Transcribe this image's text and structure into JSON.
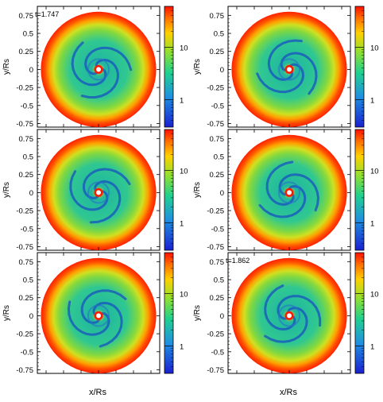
{
  "chart_data": [
    {
      "type": "heatmap",
      "panel": "top-left",
      "time_label": "t=1.747",
      "xlabel": "",
      "ylabel": "y/Rs",
      "xlim": [
        -0.875,
        0.875
      ],
      "ylim": [
        -0.8,
        0.875
      ],
      "yticks": [
        "0.75",
        "0.5",
        "0.25",
        "0",
        "-0.25",
        "-0.5",
        "-0.75"
      ],
      "colorbar": {
        "scale": "log",
        "ticks": [
          "10",
          "1"
        ],
        "range": [
          0.3,
          60
        ]
      }
    },
    {
      "type": "heatmap",
      "panel": "top-right",
      "time_label": "",
      "xlabel": "",
      "ylabel": "y/Rs",
      "xlim": [
        -0.875,
        0.875
      ],
      "ylim": [
        -0.8,
        0.875
      ],
      "yticks": [
        "0.75",
        "0.5",
        "0.25",
        "0",
        "-0.25",
        "-0.5",
        "-0.75"
      ],
      "colorbar": {
        "scale": "log",
        "ticks": [
          "10",
          "1"
        ],
        "range": [
          0.3,
          60
        ]
      }
    },
    {
      "type": "heatmap",
      "panel": "middle-left",
      "time_label": "",
      "xlabel": "",
      "ylabel": "y/Rs",
      "xlim": [
        -0.875,
        0.875
      ],
      "ylim": [
        -0.8,
        0.875
      ],
      "yticks": [
        "0.75",
        "0.5",
        "0.25",
        "0",
        "-0.25",
        "-0.5",
        "-0.75"
      ],
      "colorbar": {
        "scale": "log",
        "ticks": [
          "10",
          "1"
        ],
        "range": [
          0.3,
          60
        ]
      }
    },
    {
      "type": "heatmap",
      "panel": "middle-right",
      "time_label": "",
      "xlabel": "",
      "ylabel": "y/Rs",
      "xlim": [
        -0.875,
        0.875
      ],
      "ylim": [
        -0.8,
        0.875
      ],
      "yticks": [
        "0.75",
        "0.5",
        "0.25",
        "0",
        "-0.25",
        "-0.5",
        "-0.75"
      ],
      "colorbar": {
        "scale": "log",
        "ticks": [
          "10",
          "1"
        ],
        "range": [
          0.3,
          60
        ]
      }
    },
    {
      "type": "heatmap",
      "panel": "bottom-left",
      "time_label": "",
      "xlabel": "x/Rs",
      "ylabel": "y/Rs",
      "xlim": [
        -0.875,
        0.875
      ],
      "ylim": [
        -0.8,
        0.875
      ],
      "yticks": [
        "0.75",
        "0.5",
        "0.25",
        "0",
        "-0.25",
        "-0.5",
        "-0.75"
      ],
      "colorbar": {
        "scale": "log",
        "ticks": [
          "10",
          "1"
        ],
        "range": [
          0.3,
          60
        ]
      }
    },
    {
      "type": "heatmap",
      "panel": "bottom-right",
      "time_label": "t=1.862",
      "xlabel": "x/Rs",
      "ylabel": "y/Rs",
      "xlim": [
        -0.875,
        0.875
      ],
      "ylim": [
        -0.8,
        0.875
      ],
      "yticks": [
        "0.75",
        "0.5",
        "0.25",
        "0",
        "-0.25",
        "-0.5",
        "-0.75"
      ],
      "colorbar": {
        "scale": "log",
        "ticks": [
          "10",
          "1"
        ],
        "range": [
          0.3,
          60
        ]
      }
    }
  ],
  "colors": {
    "low": "#1030c0",
    "mid": "#20c080",
    "high": "#ff2000",
    "hole": "#ffffff"
  }
}
